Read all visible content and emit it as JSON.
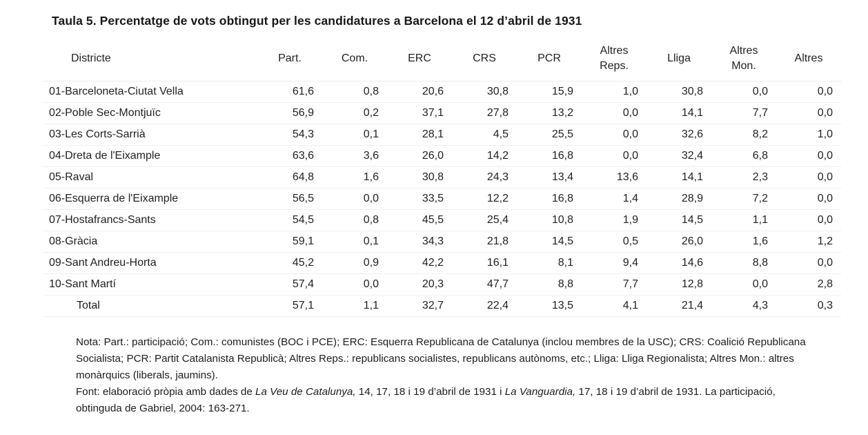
{
  "title": "Taula 5. Percentatge de vots obtingut per les candidatures a Barcelona el 12 d’abril de 1931",
  "table": {
    "header": {
      "district_label": "Districte",
      "numeric_columns": [
        [
          "Part."
        ],
        [
          "Com."
        ],
        [
          "ERC"
        ],
        [
          "CRS"
        ],
        [
          "PCR"
        ],
        [
          "Altres",
          "Reps."
        ],
        [
          "Lliga"
        ],
        [
          "Altres",
          "Mon."
        ],
        [
          "Altres"
        ]
      ]
    },
    "rows": [
      {
        "district": "01-Barceloneta-Ciutat Vella",
        "values": [
          "61,6",
          "0,8",
          "20,6",
          "30,8",
          "15,9",
          "1,0",
          "30,8",
          "0,0",
          "0,0"
        ],
        "is_total": false
      },
      {
        "district": "02-Poble Sec-Montjuïc",
        "values": [
          "56,9",
          "0,2",
          "37,1",
          "27,8",
          "13,2",
          "0,0",
          "14,1",
          "7,7",
          "0,0"
        ],
        "is_total": false
      },
      {
        "district": "03-Les Corts-Sarrià",
        "values": [
          "54,3",
          "0,1",
          "28,1",
          "4,5",
          "25,5",
          "0,0",
          "32,6",
          "8,2",
          "1,0"
        ],
        "is_total": false
      },
      {
        "district": "04-Dreta de l'Eixample",
        "values": [
          "63,6",
          "3,6",
          "26,0",
          "14,2",
          "16,8",
          "0,0",
          "32,4",
          "6,8",
          "0,0"
        ],
        "is_total": false
      },
      {
        "district": "05-Raval",
        "values": [
          "64,8",
          "1,6",
          "30,8",
          "24,3",
          "13,4",
          "13,6",
          "14,1",
          "2,3",
          "0,0"
        ],
        "is_total": false
      },
      {
        "district": "06-Esquerra de l'Eixample",
        "values": [
          "56,5",
          "0,0",
          "33,5",
          "12,2",
          "16,8",
          "1,4",
          "28,9",
          "7,2",
          "0,0"
        ],
        "is_total": false
      },
      {
        "district": "07-Hostafrancs-Sants",
        "values": [
          "54,5",
          "0,8",
          "45,5",
          "25,4",
          "10,8",
          "1,9",
          "14,5",
          "1,1",
          "0,0"
        ],
        "is_total": false
      },
      {
        "district": "08-Gràcia",
        "values": [
          "59,1",
          "0,1",
          "34,3",
          "21,8",
          "14,5",
          "0,5",
          "26,0",
          "1,6",
          "1,2"
        ],
        "is_total": false
      },
      {
        "district": "09-Sant Andreu-Horta",
        "values": [
          "45,2",
          "0,9",
          "42,2",
          "16,1",
          "8,1",
          "9,4",
          "14,6",
          "8,8",
          "0,0"
        ],
        "is_total": false
      },
      {
        "district": "10-Sant Martí",
        "values": [
          "57,4",
          "0,0",
          "20,3",
          "47,7",
          "8,8",
          "7,7",
          "12,8",
          "0,0",
          "2,8"
        ],
        "is_total": false
      },
      {
        "district": "Total",
        "values": [
          "57,1",
          "1,1",
          "32,7",
          "22,4",
          "13,5",
          "4,1",
          "21,4",
          "4,3",
          "0,3"
        ],
        "is_total": true
      }
    ]
  },
  "notes": [
    {
      "name": "nota-definitions",
      "segments": [
        {
          "t": "Nota: Part.: participació; Com.: comunistes (BOC i PCE); ERC: Esquerra Republicana de Catalunya (inclou membres de la USC); CRS: Coalició Republicana Socialista; PCR: Partit Catalanista Republicà; Altres Reps.: republicans socialistes, republicans autònoms, etc.; Lliga: Lliga Regionalista; Altres Mon.: altres monàrquics (liberals, jaumins).",
          "i": false
        }
      ]
    },
    {
      "name": "font-source",
      "segments": [
        {
          "t": "Font: elaboració pròpia amb dades de ",
          "i": false
        },
        {
          "t": "La Veu de Catalunya,",
          "i": true
        },
        {
          "t": " 14, 17, 18 i 19 d’abril de 1931 i ",
          "i": false
        },
        {
          "t": "La Vanguardia,",
          "i": true
        },
        {
          "t": " 17, 18 i 19 d’abril de 1931. La participació, obtinguda de Gabriel, 2004: 163-271.",
          "i": false
        }
      ]
    }
  ],
  "chart_data": {
    "type": "table",
    "title": "Taula 5. Percentatge de vots obtingut per les candidatures a Barcelona el 12 d’abril de 1931",
    "columns": [
      "Districte",
      "Part.",
      "Com.",
      "ERC",
      "CRS",
      "PCR",
      "Altres Reps.",
      "Lliga",
      "Altres Mon.",
      "Altres"
    ],
    "rows": [
      [
        "01-Barceloneta-Ciutat Vella",
        61.6,
        0.8,
        20.6,
        30.8,
        15.9,
        1.0,
        30.8,
        0.0,
        0.0
      ],
      [
        "02-Poble Sec-Montjuïc",
        56.9,
        0.2,
        37.1,
        27.8,
        13.2,
        0.0,
        14.1,
        7.7,
        0.0
      ],
      [
        "03-Les Corts-Sarrià",
        54.3,
        0.1,
        28.1,
        4.5,
        25.5,
        0.0,
        32.6,
        8.2,
        1.0
      ],
      [
        "04-Dreta de l'Eixample",
        63.6,
        3.6,
        26.0,
        14.2,
        16.8,
        0.0,
        32.4,
        6.8,
        0.0
      ],
      [
        "05-Raval",
        64.8,
        1.6,
        30.8,
        24.3,
        13.4,
        13.6,
        14.1,
        2.3,
        0.0
      ],
      [
        "06-Esquerra de l'Eixample",
        56.5,
        0.0,
        33.5,
        12.2,
        16.8,
        1.4,
        28.9,
        7.2,
        0.0
      ],
      [
        "07-Hostafrancs-Sants",
        54.5,
        0.8,
        45.5,
        25.4,
        10.8,
        1.9,
        14.5,
        1.1,
        0.0
      ],
      [
        "08-Gràcia",
        59.1,
        0.1,
        34.3,
        21.8,
        14.5,
        0.5,
        26.0,
        1.6,
        1.2
      ],
      [
        "09-Sant Andreu-Horta",
        45.2,
        0.9,
        42.2,
        16.1,
        8.1,
        9.4,
        14.6,
        8.8,
        0.0
      ],
      [
        "10-Sant Martí",
        57.4,
        0.0,
        20.3,
        47.7,
        8.8,
        7.7,
        12.8,
        0.0,
        2.8
      ],
      [
        "Total",
        57.1,
        1.1,
        32.7,
        22.4,
        13.5,
        4.1,
        21.4,
        4.3,
        0.3
      ]
    ]
  }
}
